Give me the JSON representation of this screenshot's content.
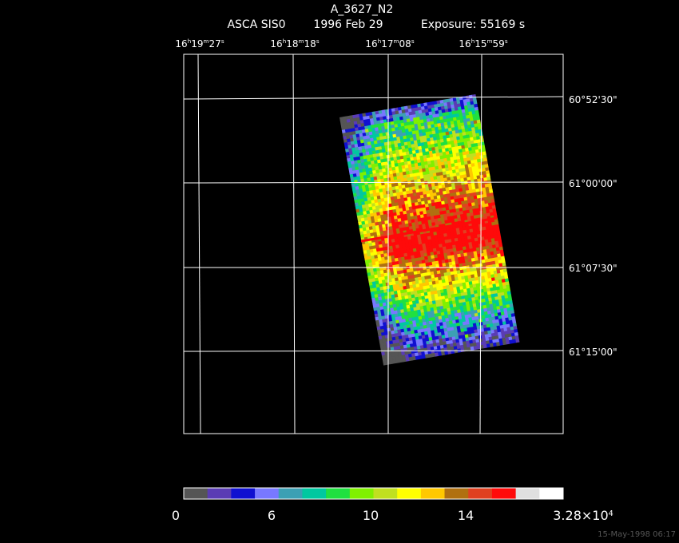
{
  "header": {
    "title": "A_3627_N2",
    "instrument": "ASCA SIS0",
    "date": "1996 Feb 29",
    "exposure": "Exposure: 55169 s"
  },
  "ra_labels": [
    [
      "16",
      "h",
      "19",
      "m",
      "27",
      "s"
    ],
    [
      "16",
      "h",
      "18",
      "m",
      "18",
      "s"
    ],
    [
      "16",
      "h",
      "17",
      "m",
      "08",
      "s"
    ],
    [
      "16",
      "h",
      "15",
      "m",
      "59",
      "s"
    ]
  ],
  "dec_labels": [
    "60°52'30\"",
    "61°00'00\"",
    "61°07'30\"",
    "61°15'00\""
  ],
  "colorbar": {
    "colors": [
      "#555555",
      "#5a3cb4",
      "#1010d0",
      "#7878ff",
      "#3ca0b4",
      "#00c8a0",
      "#20e040",
      "#80f000",
      "#c0e020",
      "#ffff00",
      "#ffc800",
      "#b07010",
      "#e04020",
      "#ff0a0a",
      "#e0e0e0",
      "#ffffff"
    ],
    "labels": [
      [
        "0"
      ],
      [
        "6"
      ],
      [
        "10"
      ],
      [
        "14"
      ],
      [
        "3.28×10",
        "4"
      ]
    ]
  },
  "footer": "15-May-1998 06:17"
}
